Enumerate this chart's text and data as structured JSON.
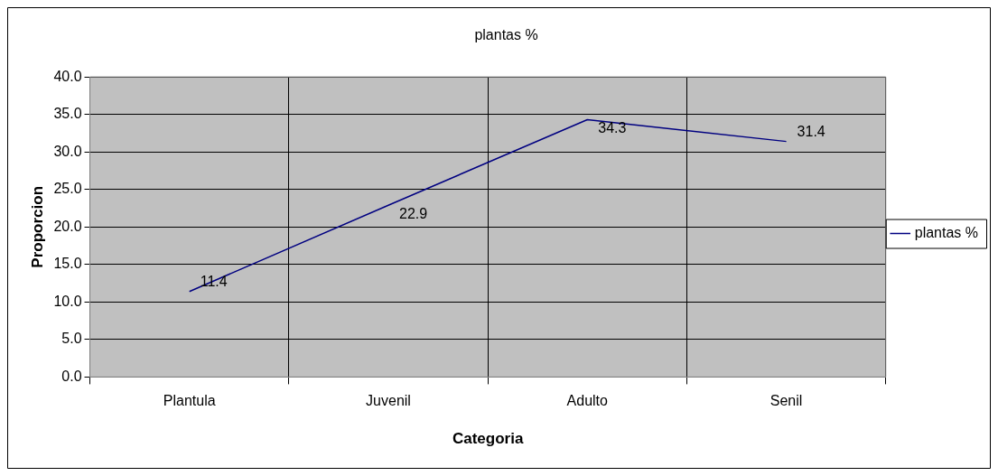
{
  "chart_data": {
    "type": "line",
    "title": "plantas %",
    "xlabel": "Categoria",
    "ylabel": "Proporcion",
    "categories": [
      "Plantula",
      "Juvenil",
      "Adulto",
      "Senil"
    ],
    "series": [
      {
        "name": "plantas %",
        "color": "#000080",
        "values": [
          11.4,
          22.9,
          34.3,
          31.4
        ]
      }
    ],
    "ylim": [
      0,
      40
    ],
    "yticks": [
      {
        "value": 0,
        "label": "0.0"
      },
      {
        "value": 5,
        "label": "5.0"
      },
      {
        "value": 10,
        "label": "10.0"
      },
      {
        "value": 15,
        "label": "15.0"
      },
      {
        "value": 20,
        "label": "20.0"
      },
      {
        "value": 25,
        "label": "25.0"
      },
      {
        "value": 30,
        "label": "30.0"
      },
      {
        "value": 35,
        "label": "35.0"
      },
      {
        "value": 40,
        "label": "40.0"
      }
    ],
    "grid": true,
    "legend": "right",
    "marker": "none",
    "line_style": "solid",
    "data_labels": true
  }
}
